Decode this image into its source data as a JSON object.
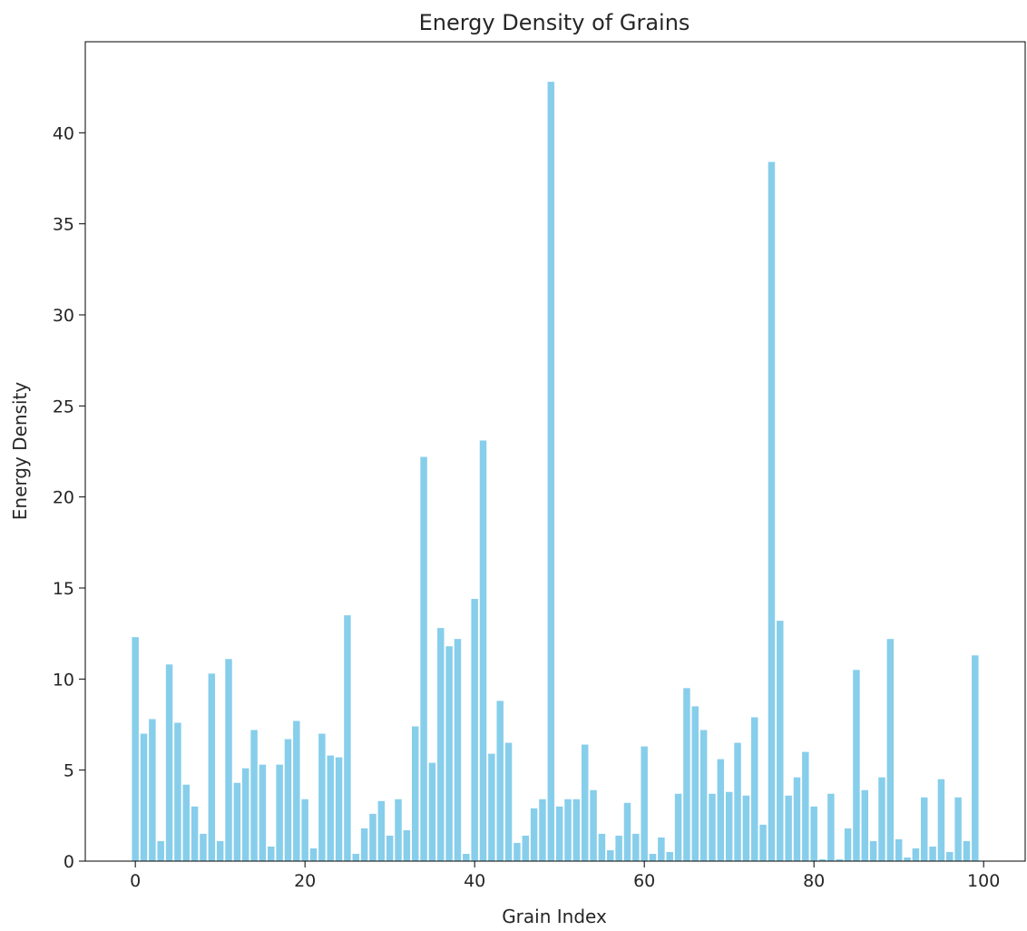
{
  "chart_data": {
    "type": "bar",
    "title": "Energy Density of Grains",
    "xlabel": "Grain Index",
    "ylabel": "Energy Density",
    "xlim": [
      -5.9,
      104.9
    ],
    "ylim": [
      0,
      45
    ],
    "xticks": [
      0,
      20,
      40,
      60,
      80,
      100
    ],
    "yticks": [
      0,
      5,
      10,
      15,
      20,
      25,
      30,
      35,
      40
    ],
    "xtick_labels": [
      "0",
      "20",
      "40",
      "60",
      "80",
      "100"
    ],
    "ytick_labels": [
      "0",
      "5",
      "10",
      "15",
      "20",
      "25",
      "30",
      "35",
      "40"
    ],
    "grid": false,
    "color": "#87CEEB",
    "x": [
      0,
      1,
      2,
      3,
      4,
      5,
      6,
      7,
      8,
      9,
      10,
      11,
      12,
      13,
      14,
      15,
      16,
      17,
      18,
      19,
      20,
      21,
      22,
      23,
      24,
      25,
      26,
      27,
      28,
      29,
      30,
      31,
      32,
      33,
      34,
      35,
      36,
      37,
      38,
      39,
      40,
      41,
      42,
      43,
      44,
      45,
      46,
      47,
      48,
      49,
      50,
      51,
      52,
      53,
      54,
      55,
      56,
      57,
      58,
      59,
      60,
      61,
      62,
      63,
      64,
      65,
      66,
      67,
      68,
      69,
      70,
      71,
      72,
      73,
      74,
      75,
      76,
      77,
      78,
      79,
      80,
      81,
      82,
      83,
      84,
      85,
      86,
      87,
      88,
      89,
      90,
      91,
      92,
      93,
      94,
      95,
      96,
      97,
      98,
      99
    ],
    "values": [
      12.3,
      7.0,
      7.8,
      1.1,
      10.8,
      7.6,
      4.2,
      3.0,
      1.5,
      10.3,
      1.1,
      11.1,
      4.3,
      5.1,
      7.2,
      5.3,
      0.8,
      5.3,
      6.7,
      7.7,
      3.4,
      0.7,
      7.0,
      5.8,
      5.7,
      13.5,
      0.4,
      1.8,
      2.6,
      3.3,
      1.4,
      3.4,
      1.7,
      7.4,
      22.2,
      5.4,
      12.8,
      11.8,
      12.2,
      0.4,
      14.4,
      23.1,
      5.9,
      8.8,
      6.5,
      1.0,
      1.4,
      2.9,
      3.4,
      42.8,
      3.0,
      3.4,
      3.4,
      6.4,
      3.9,
      1.5,
      0.6,
      1.4,
      3.2,
      1.5,
      6.3,
      0.4,
      1.3,
      0.5,
      3.7,
      9.5,
      8.5,
      7.2,
      3.7,
      5.6,
      3.8,
      6.5,
      3.6,
      7.9,
      2.0,
      38.4,
      13.2,
      3.6,
      4.6,
      6.0,
      3.0,
      0.1,
      3.7,
      0.1,
      1.8,
      10.5,
      3.9,
      1.1,
      4.6,
      12.2,
      1.2,
      0.2,
      0.7,
      3.5,
      0.8,
      4.5,
      0.5,
      3.5,
      1.1,
      11.3
    ]
  }
}
